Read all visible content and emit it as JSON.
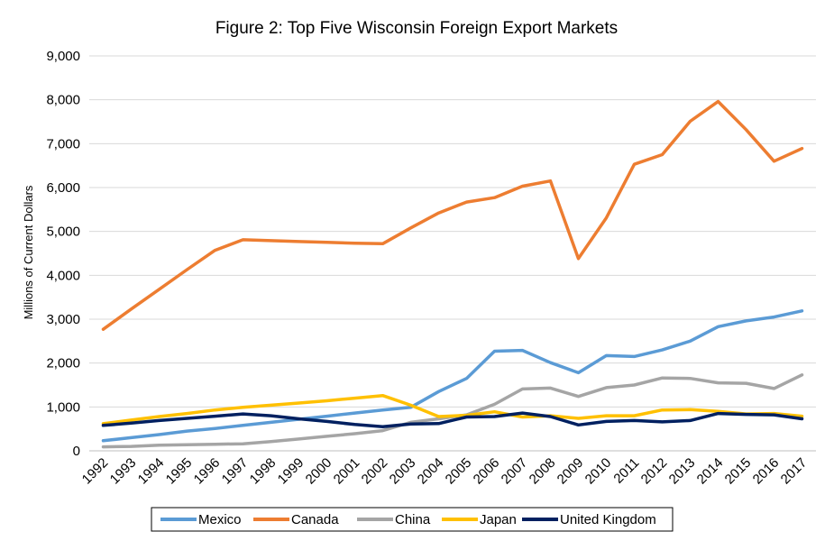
{
  "chart_data": {
    "type": "line",
    "title": "Figure 2: Top Five Wisconsin Foreign Export Markets",
    "xlabel": "",
    "ylabel": "Millions of Current Dollars",
    "ylim": [
      0,
      9000
    ],
    "yticks": [
      0,
      1000,
      2000,
      3000,
      4000,
      5000,
      6000,
      7000,
      8000,
      9000
    ],
    "ytick_labels": [
      "0",
      "1,000",
      "2,000",
      "3,000",
      "4,000",
      "5,000",
      "6,000",
      "7,000",
      "8,000",
      "9,000"
    ],
    "x": [
      "1992",
      "1993",
      "1994",
      "1995",
      "1996",
      "1997",
      "1998",
      "1999",
      "2000",
      "2001",
      "2002",
      "2003",
      "2004",
      "2005",
      "2006",
      "2007",
      "2008",
      "2009",
      "2010",
      "2011",
      "2012",
      "2013",
      "2014",
      "2015",
      "2016",
      "2017"
    ],
    "grid": true,
    "legend_position": "bottom",
    "series": [
      {
        "name": "Mexico",
        "color": "#5B9BD5",
        "values": [
          230,
          300,
          370,
          450,
          510,
          580,
          650,
          720,
          790,
          860,
          930,
          990,
          1350,
          1650,
          2270,
          2290,
          2010,
          1780,
          2170,
          2150,
          2300,
          2500,
          2830,
          2960,
          3050,
          3190
        ]
      },
      {
        "name": "Canada",
        "color": "#ED7D31",
        "values": [
          2770,
          3230,
          3680,
          4130,
          4570,
          4810,
          4790,
          4770,
          4750,
          4730,
          4720,
          5080,
          5420,
          5670,
          5770,
          6030,
          6150,
          4380,
          5310,
          6530,
          6750,
          7510,
          7960,
          7320,
          6600,
          6890
        ]
      },
      {
        "name": "China",
        "color": "#A5A5A5",
        "values": [
          90,
          100,
          130,
          140,
          150,
          160,
          210,
          270,
          330,
          390,
          460,
          650,
          730,
          820,
          1060,
          1410,
          1430,
          1240,
          1440,
          1500,
          1660,
          1650,
          1550,
          1540,
          1420,
          1730
        ]
      },
      {
        "name": "Japan",
        "color": "#FFC000",
        "values": [
          620,
          700,
          780,
          850,
          930,
          990,
          1040,
          1090,
          1140,
          1200,
          1260,
          1040,
          780,
          810,
          890,
          770,
          800,
          740,
          800,
          800,
          930,
          940,
          900,
          840,
          850,
          790
        ]
      },
      {
        "name": "United Kingdom",
        "color": "#002060",
        "values": [
          580,
          630,
          690,
          740,
          790,
          840,
          800,
          730,
          670,
          600,
          550,
          610,
          620,
          770,
          780,
          860,
          780,
          590,
          670,
          690,
          660,
          690,
          850,
          830,
          820,
          730
        ]
      }
    ]
  }
}
